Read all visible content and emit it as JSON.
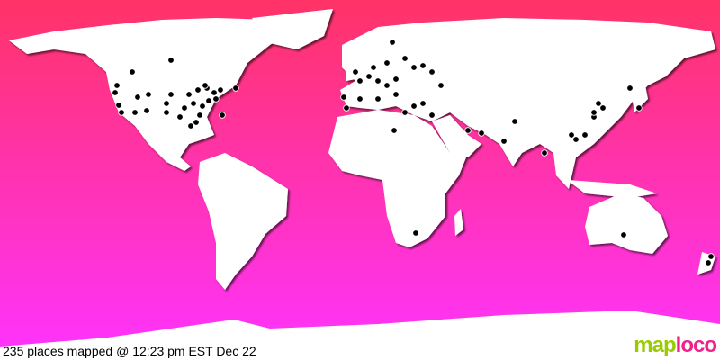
{
  "status_text": "235 places mapped @ 12:23 pm EST Dec 22",
  "logo": {
    "part1": "map",
    "part2": "loco"
  },
  "colors": {
    "ocean_top": "#ff3366",
    "ocean_bottom": "#ff33ff",
    "land": "#ffffff",
    "marker": "#000000"
  }
}
